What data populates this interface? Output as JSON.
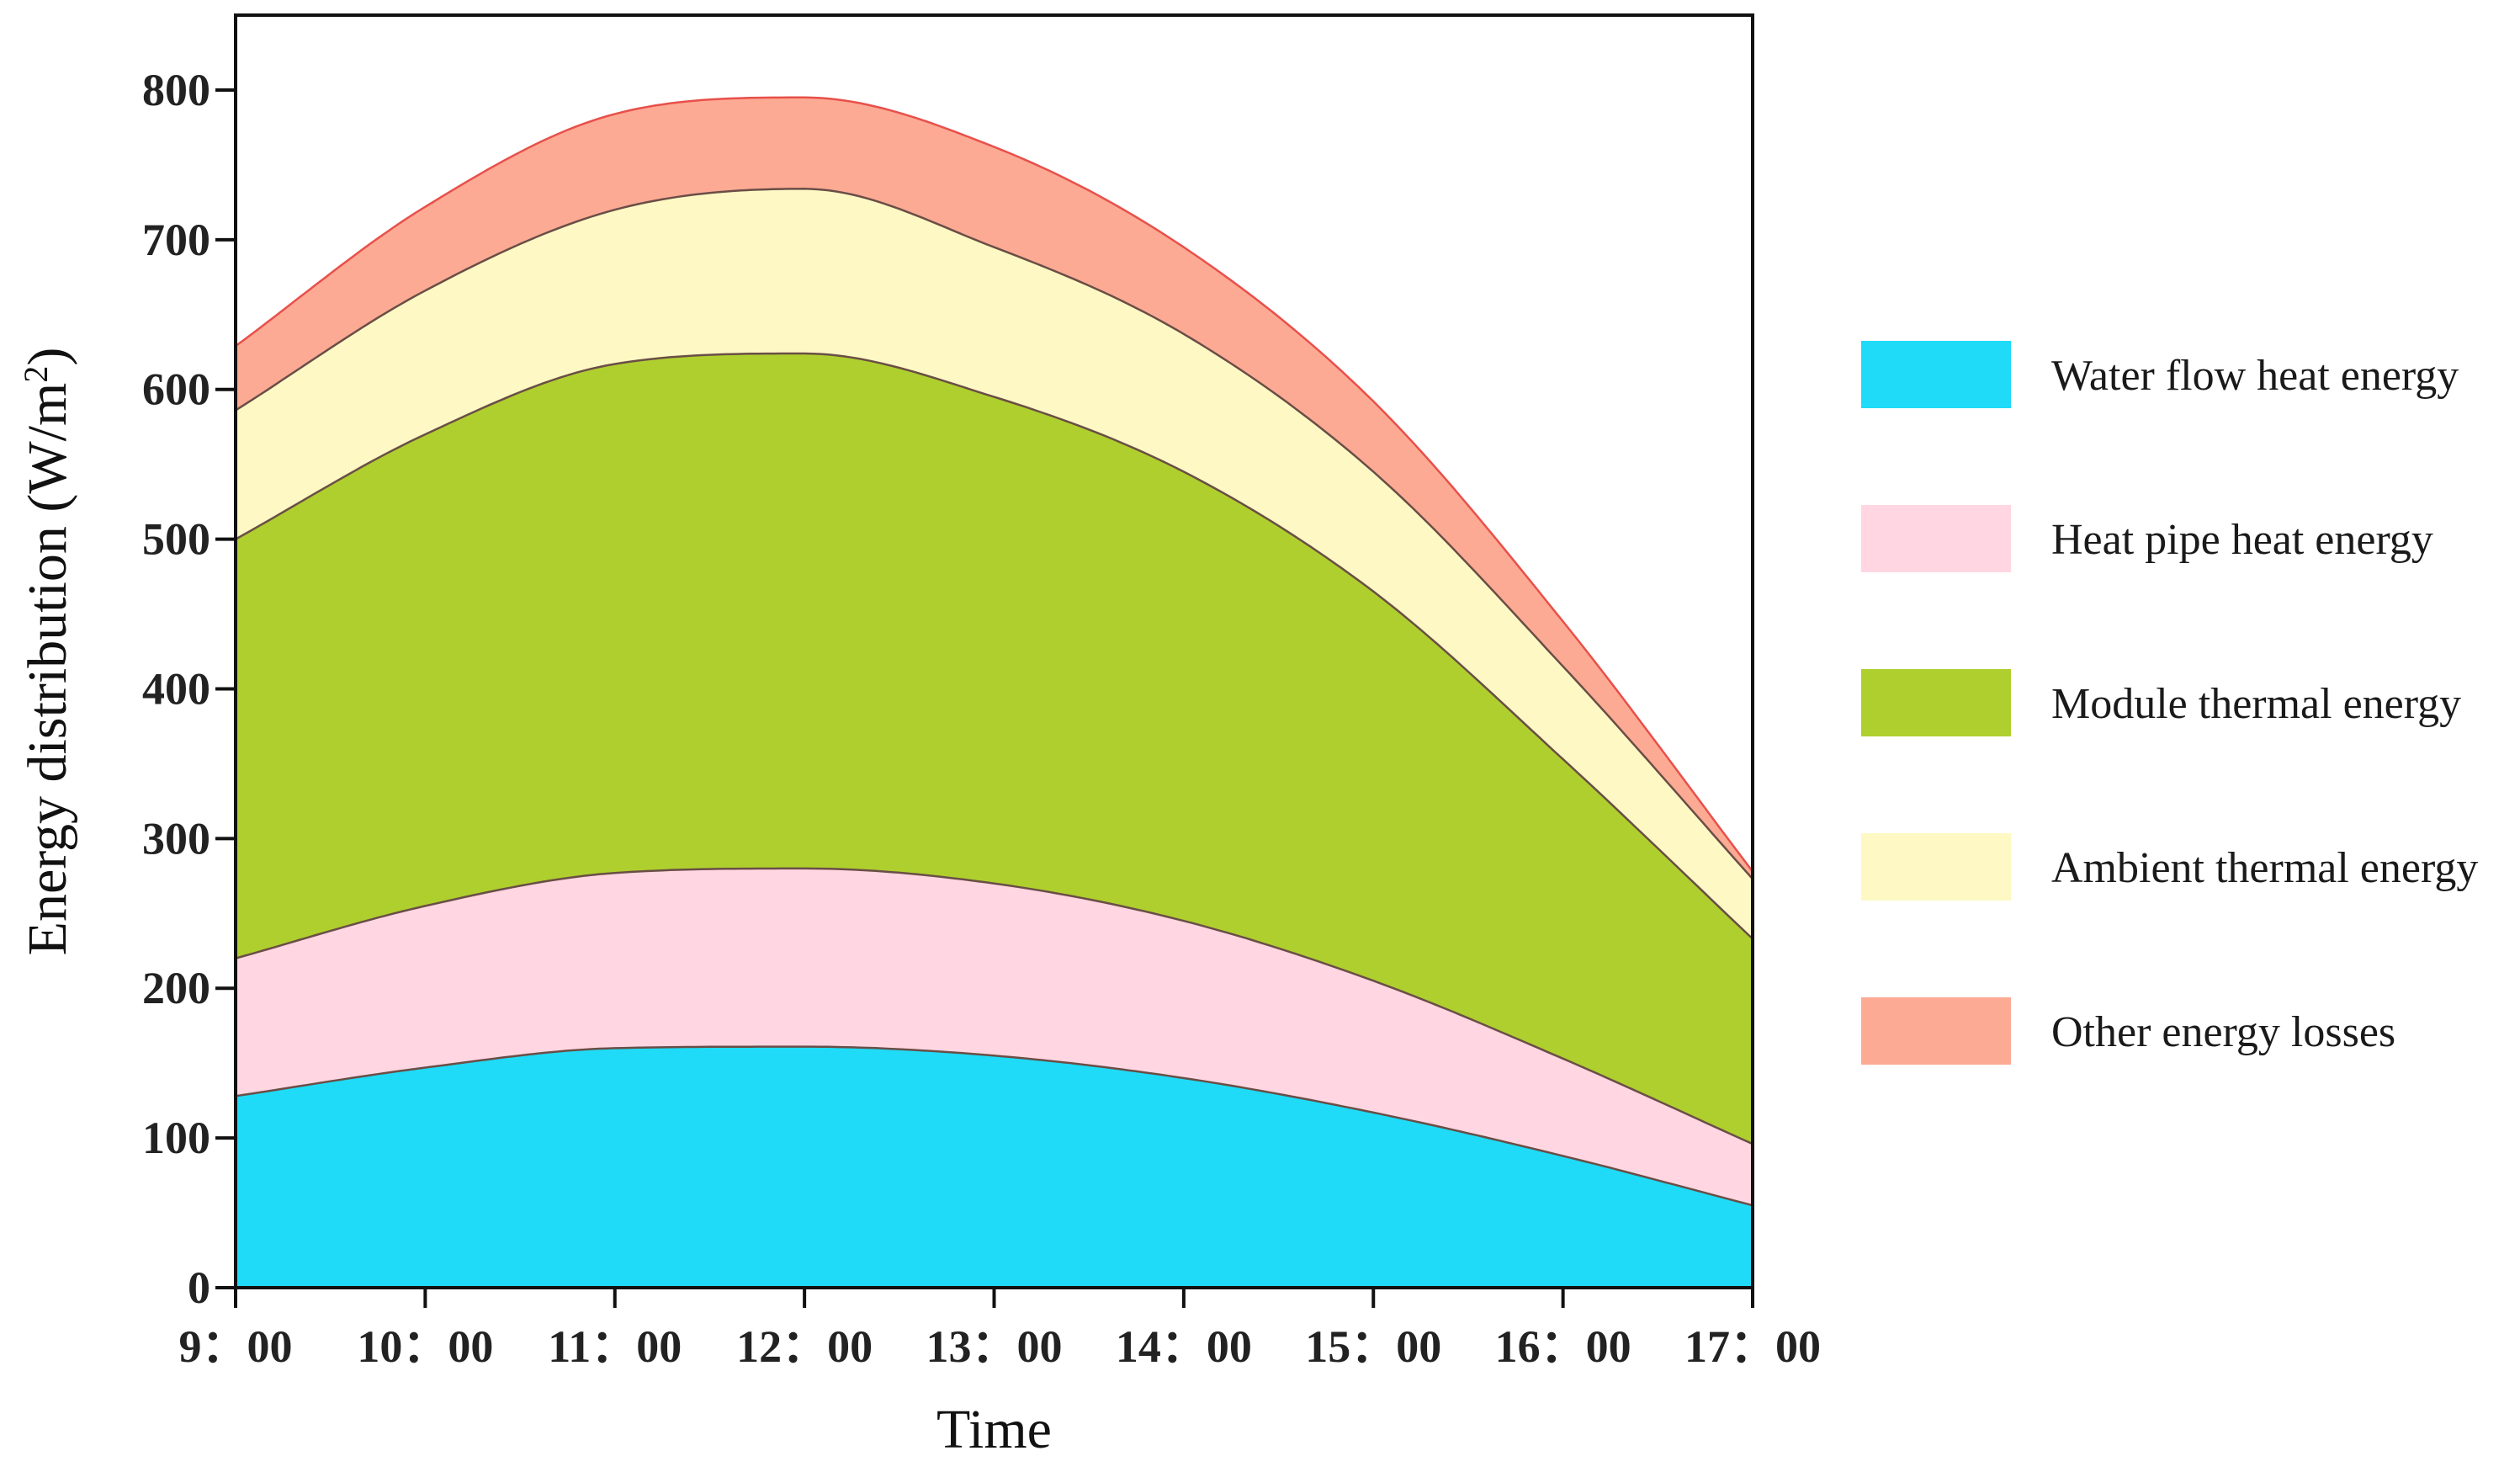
{
  "chart_data": {
    "type": "area",
    "stacked": true,
    "title": "",
    "xlabel": "Time",
    "ylabel": "Energy distribution (W/m",
    "ylabel_sup": "2",
    "ylabel_close": ")",
    "x_tick_labels": [
      "9：00",
      "10：00",
      "11：00",
      "12：00",
      "13：00",
      "14：00",
      "15：00",
      "16：00",
      "17：00"
    ],
    "x": [
      9,
      10,
      11,
      12,
      13,
      14,
      15,
      16,
      17
    ],
    "xlim": [
      9,
      17
    ],
    "ylim": [
      0,
      850
    ],
    "y_ticks": [
      0,
      100,
      200,
      300,
      400,
      500,
      600,
      700,
      800
    ],
    "grid": false,
    "legend_position": "right",
    "series": [
      {
        "name": "Water flow heat energy",
        "color": "#1fdbf7",
        "values": [
          128,
          147,
          160,
          161,
          155,
          140,
          117,
          88,
          55
        ]
      },
      {
        "name": "Heat pipe heat energy",
        "color": "#ffd6e2",
        "values": [
          92,
          108,
          117,
          119,
          115,
          105,
          88,
          65,
          41
        ]
      },
      {
        "name": "Module thermal energy",
        "color": "#afcf2e",
        "values": [
          280,
          315,
          340,
          344,
          325,
          300,
          260,
          200,
          137
        ]
      },
      {
        "name": "Ambient thermal energy",
        "color": "#fef9c4",
        "values": [
          86,
          96,
          103,
          110,
          100,
          92,
          80,
          62,
          40
        ]
      },
      {
        "name": "Other energy losses",
        "color": "#fcaa94",
        "values": [
          43,
          56,
          64,
          61,
          67,
          58,
          47,
          30,
          5
        ]
      }
    ]
  }
}
